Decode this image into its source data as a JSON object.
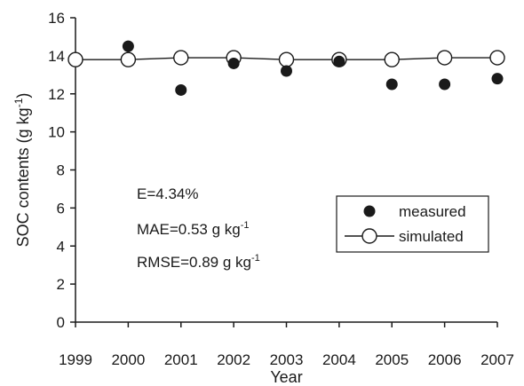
{
  "chart_data": {
    "type": "scatter",
    "xlabel": "Year",
    "ylabel": "SOC contents (g kg",
    "ylabel_sup": "-1",
    "ylabel_close": ")",
    "xlim": [
      1999,
      2007
    ],
    "ylim": [
      0,
      16
    ],
    "yticks": [
      0,
      2,
      4,
      6,
      8,
      10,
      12,
      14,
      16
    ],
    "xticks": [
      "1999",
      "2000",
      "2001",
      "2002",
      "2003",
      "2004",
      "2005",
      "2006",
      "2007"
    ],
    "grid": false,
    "legend_position": "right",
    "series": [
      {
        "name": "measured",
        "style": "filled-circle",
        "x": [
          2000,
          2001,
          2002,
          2003,
          2004,
          2005,
          2006,
          2007
        ],
        "y": [
          14.5,
          12.2,
          13.6,
          13.2,
          13.7,
          12.5,
          12.5,
          12.8
        ]
      },
      {
        "name": "simulated",
        "style": "line-open-circle",
        "x": [
          1999,
          2000,
          2001,
          2002,
          2003,
          2004,
          2005,
          2006,
          2007
        ],
        "y": [
          13.8,
          13.8,
          13.9,
          13.9,
          13.8,
          13.8,
          13.8,
          13.9,
          13.9
        ]
      }
    ],
    "annotations": [
      {
        "text": "E=4.34%",
        "sup": ""
      },
      {
        "text": "MAE=0.53 g kg",
        "sup": "-1"
      },
      {
        "text": "RMSE=0.89 g kg",
        "sup": "-1"
      }
    ]
  }
}
